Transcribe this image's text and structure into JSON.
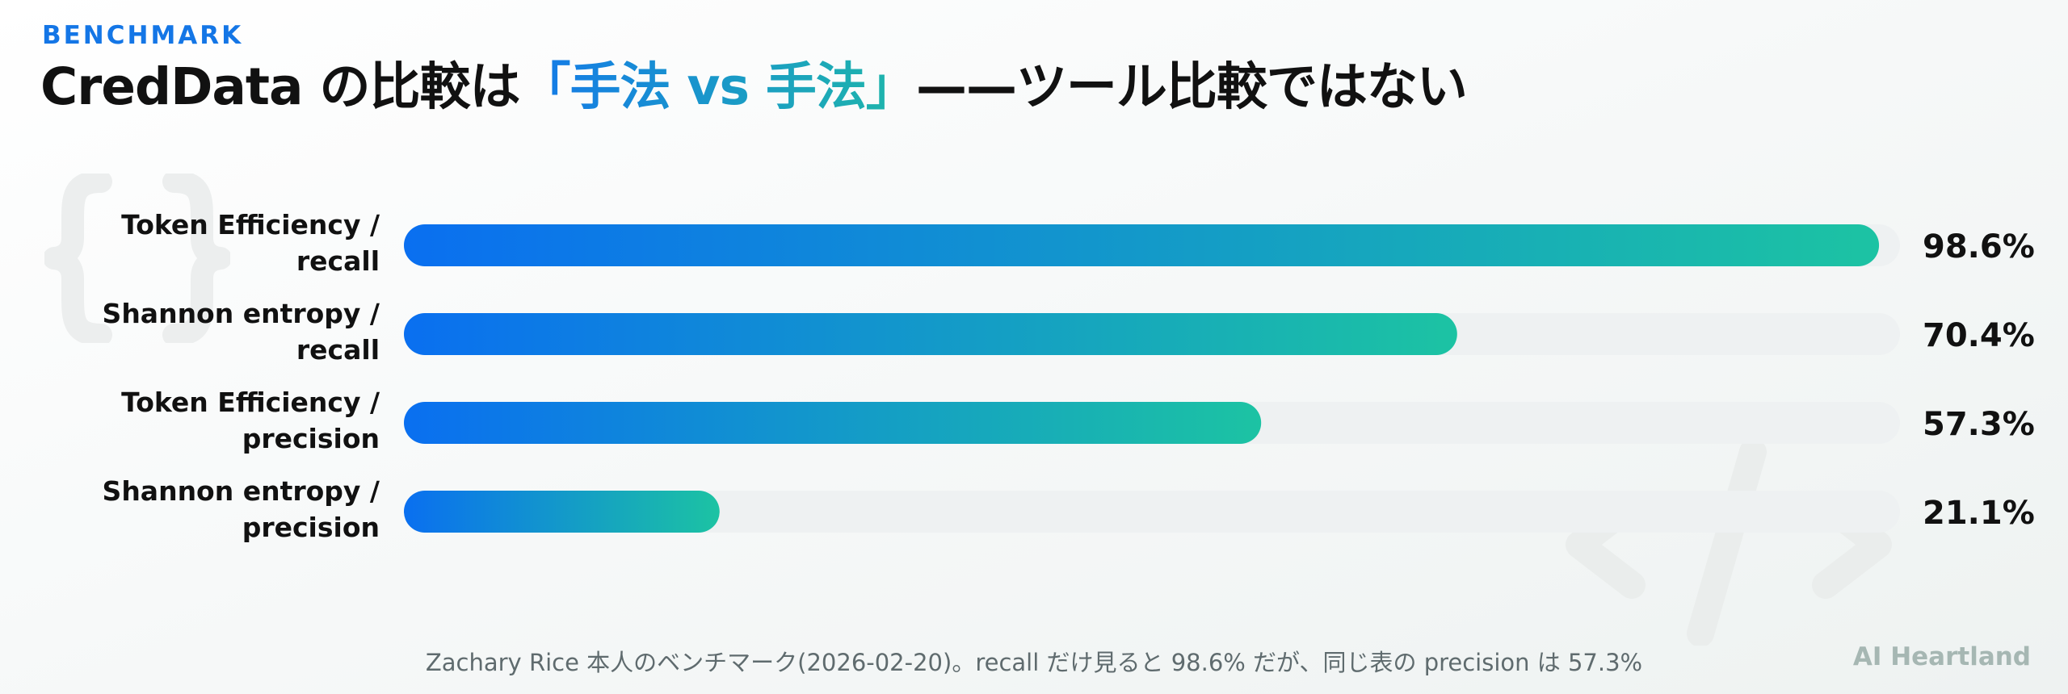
{
  "header": {
    "eyebrow": "BENCHMARK",
    "title_prefix": "CredData の比較は",
    "title_accent": "「手法 vs 手法」",
    "title_suffix": "——ツール比較ではない"
  },
  "chart_data": {
    "type": "bar",
    "orientation": "horizontal",
    "categories": [
      [
        "Token Efficiency /",
        "recall"
      ],
      [
        "Shannon entropy /",
        "recall"
      ],
      [
        "Token Efficiency /",
        "precision"
      ],
      [
        "Shannon entropy /",
        "precision"
      ]
    ],
    "values": [
      98.6,
      70.4,
      57.3,
      21.1
    ],
    "value_labels": [
      "98.6%",
      "70.4%",
      "57.3%",
      "21.1%"
    ],
    "unit": "%",
    "xlim": [
      0,
      100
    ],
    "grid": false,
    "legend": "none",
    "colors": {
      "bar_start": "#0a6ff0",
      "bar_end": "#1cc3a3",
      "track": "#eef1f2",
      "label": "#111111"
    }
  },
  "footer": {
    "note": "Zachary Rice 本人のベンチマーク(2026-02-20)。recall だけ見ると 98.6% だが、同じ表の precision は 57.3%",
    "brand": "AI Heartland"
  },
  "decorations": {
    "left_icon": "curly-braces-icon",
    "right_icon": "code-tag-icon"
  }
}
